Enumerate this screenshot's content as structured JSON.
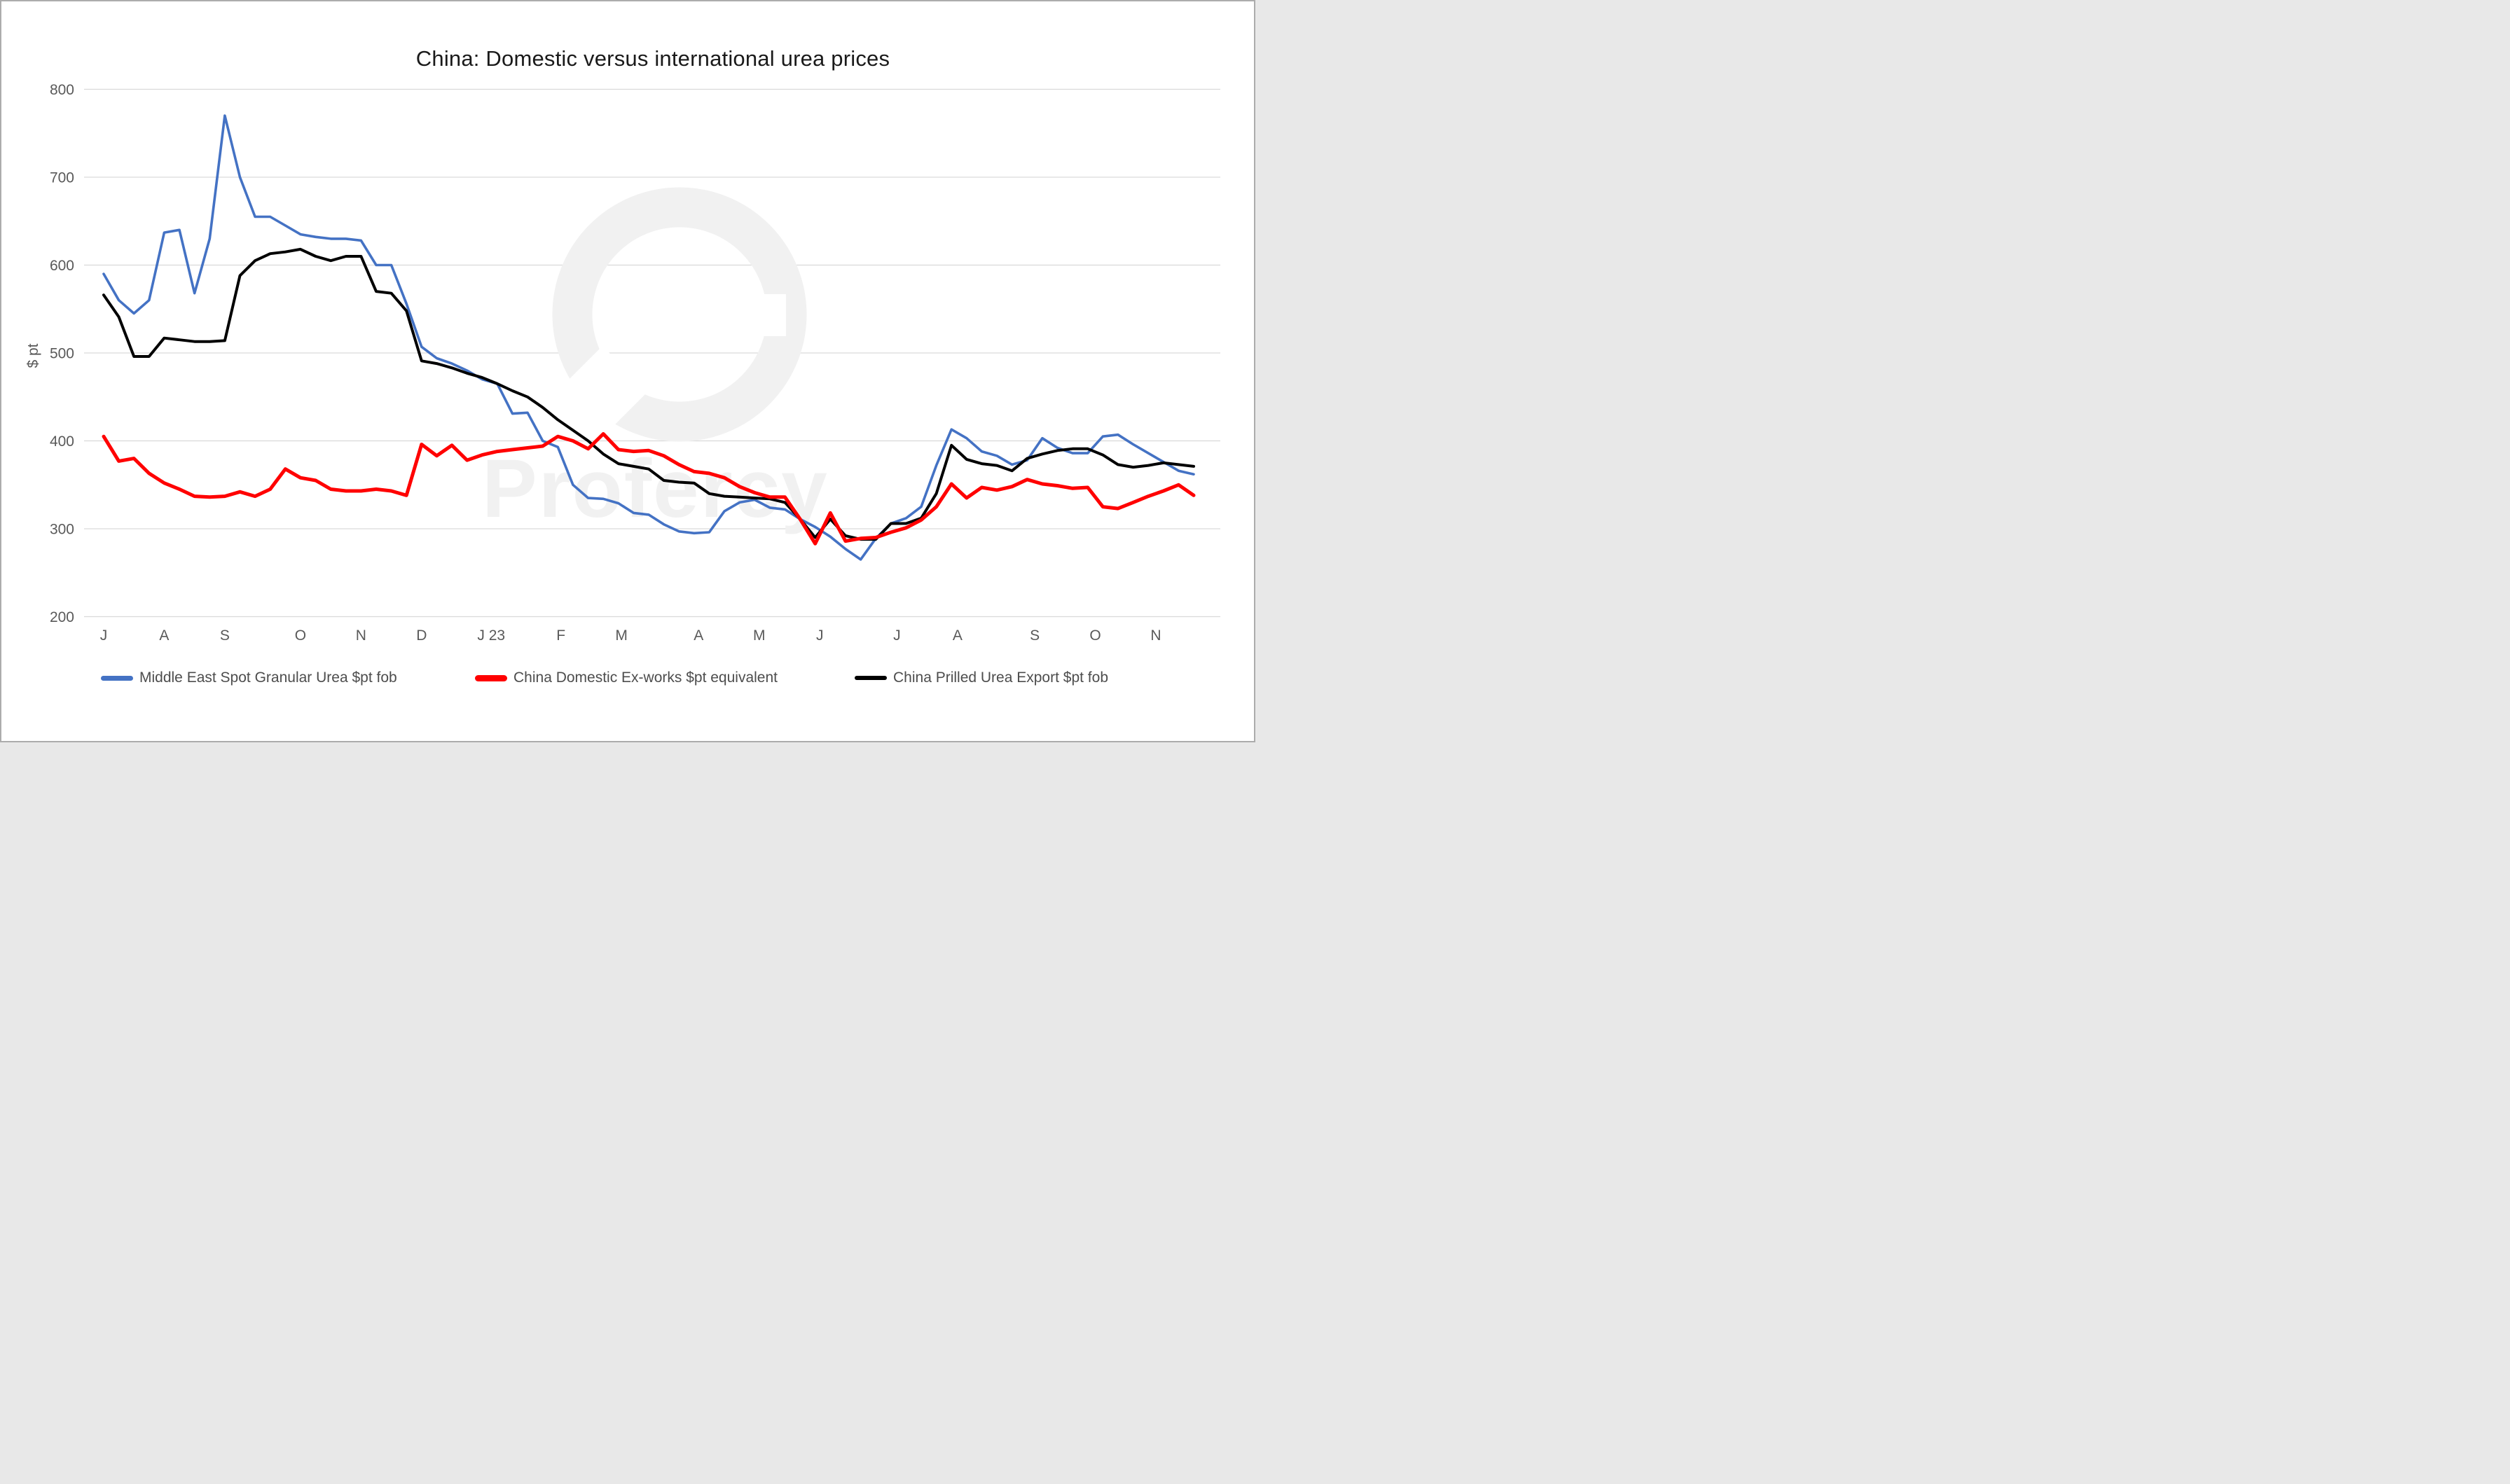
{
  "page": {
    "background": "#FFFFFF",
    "frame_color": "#ACACAC"
  },
  "title": {
    "text": "China: Domestic versus international urea prices",
    "color": "#1A1A1A"
  },
  "watermark": {
    "text": "Profercy",
    "color": "#F1F1F1"
  },
  "y_axis": {
    "title": "$ pt",
    "min": 200,
    "max": 800,
    "tick_step": 100,
    "ticks": [
      800,
      700,
      600,
      500,
      400,
      300,
      200
    ],
    "text_color": "#595959",
    "grid_color": "#D9D9D9"
  },
  "x_axis": {
    "labels": [
      "J",
      "A",
      "S",
      "O",
      "N",
      "D",
      "J 23",
      "F",
      "M",
      "A",
      "M",
      "J",
      "J",
      "A",
      "S",
      "O",
      "N"
    ],
    "label_weeks": [
      0,
      4,
      8,
      13,
      17,
      21,
      25.6,
      30.2,
      34.2,
      39.3,
      43.3,
      47.3,
      52.4,
      56.4,
      61.5,
      65.5,
      69.5
    ],
    "text_color": "#595959"
  },
  "legend": {
    "text_color": "#4D4D4D",
    "items": [
      {
        "label": "Middle East Spot Granular Urea $pt fob",
        "color": "#4472C4"
      },
      {
        "label": "China Domestic Ex-works $pt equivalent",
        "color": "#FF0000"
      },
      {
        "label": "China Prilled Urea Export $pt fob",
        "color": "#000000"
      }
    ]
  },
  "chart_data": {
    "type": "line",
    "title": "China: Domestic versus international urea prices",
    "ylabel": "$ pt",
    "ylim": [
      200,
      800
    ],
    "grid": "horizontal",
    "legend_position": "bottom",
    "x_description": "Weekly prices, July 2022 to late November 2023; month initials mark the first week of each month, 'J 23' = January 2023",
    "x_tick_labels": [
      "J",
      "A",
      "S",
      "O",
      "N",
      "D",
      "J 23",
      "F",
      "M",
      "A",
      "M",
      "J",
      "J",
      "A",
      "S",
      "O",
      "N"
    ],
    "x_tick_weeks": [
      0,
      4,
      8,
      13,
      17,
      21,
      25.6,
      30.2,
      34.2,
      39.3,
      43.3,
      47.3,
      52.4,
      56.4,
      61.5,
      65.5,
      69.5
    ],
    "n_points": 73,
    "series": [
      {
        "name": "Middle East Spot Granular Urea $pt fob",
        "color": "#4472C4",
        "stroke_width": 3.6,
        "z": 1,
        "values": [
          590,
          560,
          545,
          560,
          637,
          640,
          568,
          630,
          770,
          700,
          655,
          655,
          645,
          635,
          632,
          630,
          630,
          628,
          600,
          600,
          556,
          507,
          494,
          488,
          480,
          470,
          465,
          431,
          432,
          400,
          393,
          350,
          335,
          334,
          329,
          318,
          316,
          305,
          297,
          295,
          296,
          320,
          330,
          333,
          324,
          322,
          311,
          302,
          291,
          277,
          265,
          289,
          306,
          312,
          325,
          372,
          413,
          403,
          388,
          383,
          373,
          378,
          403,
          392,
          386,
          386,
          405,
          407,
          396,
          386,
          376,
          366,
          362
        ]
      },
      {
        "name": "China Domestic Ex-works $pt equivalent",
        "color": "#FF0000",
        "stroke_width": 5,
        "z": 3,
        "values": [
          405,
          377,
          380,
          363,
          352,
          345,
          337,
          336,
          337,
          342,
          337,
          345,
          368,
          358,
          355,
          345,
          343,
          343,
          345,
          343,
          338,
          396,
          383,
          395,
          378,
          384,
          388,
          390,
          392,
          394,
          405,
          400,
          391,
          408,
          390,
          388,
          389,
          383,
          373,
          365,
          363,
          358,
          348,
          341,
          336,
          336,
          311,
          283,
          318,
          286,
          289,
          290,
          296,
          301,
          310,
          325,
          351,
          335,
          347,
          344,
          348,
          356,
          351,
          349,
          346,
          347,
          325,
          323,
          330,
          337,
          343,
          350,
          338
        ]
      },
      {
        "name": "China Prilled Urea Export $pt fob",
        "color": "#000000",
        "stroke_width": 4,
        "z": 2,
        "values": [
          566,
          541,
          496,
          496,
          517,
          515,
          513,
          513,
          514,
          588,
          605,
          613,
          615,
          618,
          610,
          605,
          610,
          610,
          570,
          568,
          548,
          491,
          488,
          483,
          477,
          472,
          465,
          457,
          450,
          438,
          424,
          412,
          400,
          385,
          374,
          371,
          368,
          355,
          353,
          352,
          340,
          337,
          336,
          335,
          334,
          330,
          311,
          290,
          311,
          292,
          288,
          288,
          306,
          306,
          312,
          340,
          395,
          379,
          374,
          372,
          366,
          380,
          385,
          389,
          391,
          391,
          384,
          373,
          370,
          372,
          375,
          373,
          371
        ]
      }
    ]
  }
}
